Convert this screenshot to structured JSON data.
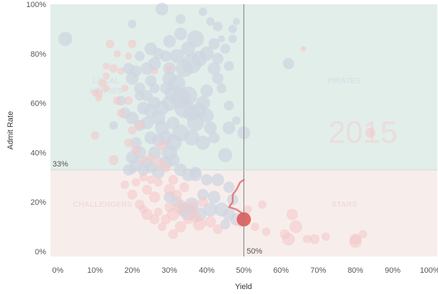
{
  "chart_data": {
    "type": "scatter",
    "title": "",
    "xlabel": "Yield",
    "ylabel": "Admit Rate",
    "xlim": [
      -2,
      102
    ],
    "ylim": [
      -2,
      100
    ],
    "xticks": [
      0,
      10,
      20,
      30,
      40,
      50,
      60,
      70,
      80,
      90,
      100
    ],
    "xtick_labels": [
      "0%",
      "10%",
      "20%",
      "30%",
      "40%",
      "50%",
      "60%",
      "70%",
      "80%",
      "90%",
      "100%"
    ],
    "yticks": [
      0,
      20,
      40,
      60,
      80,
      100
    ],
    "ytick_labels": [
      "0%",
      "20%",
      "40%",
      "60%",
      "80%",
      "100%"
    ],
    "grid": false,
    "threshold_yield": 50,
    "threshold_yield_label": "50%",
    "threshold_admit": 33,
    "threshold_admit_label": "33%",
    "year_watermark": "2015",
    "quadrants": [
      {
        "label": "LOCAL HEROES",
        "lines": [
          "LOCAL",
          "HEROES"
        ],
        "x": 13,
        "y": 68,
        "color": "#d9e1e6"
      },
      {
        "label": "PIRATES",
        "lines": [
          "PIRATES"
        ],
        "x": 77,
        "y": 68,
        "color": "#d9e1e6"
      },
      {
        "label": "CHALLENGERS",
        "lines": [
          "CHALLENGERS"
        ],
        "x": 12,
        "y": 18,
        "color": "#efdcdc"
      },
      {
        "label": "STARS",
        "lines": [
          "STARS"
        ],
        "x": 77,
        "y": 18,
        "color": "#efdcdc"
      }
    ],
    "colors": {
      "top_band": "#e2eeea",
      "bottom_band": "#f7eeec",
      "gray_point": "#cfd6e0",
      "red_point": "#f4c9c9",
      "highlight": "#e05a5a",
      "trail": "#e07070",
      "ref_line": "#8c8c8c"
    },
    "series": [
      {
        "color": "gray",
        "points": [
          [
            2,
            86,
            10
          ],
          [
            28,
            98,
            9
          ],
          [
            20,
            92,
            6
          ],
          [
            33,
            94,
            7
          ],
          [
            39,
            97,
            6
          ],
          [
            41,
            93,
            6
          ],
          [
            43,
            91,
            7
          ],
          [
            44,
            86,
            5
          ],
          [
            47,
            90,
            6
          ],
          [
            48,
            93,
            5
          ],
          [
            42,
            84,
            8
          ],
          [
            45,
            82,
            7
          ],
          [
            47,
            86,
            6
          ],
          [
            43,
            78,
            8
          ],
          [
            46,
            75,
            7
          ],
          [
            30,
            85,
            9
          ],
          [
            33,
            88,
            9
          ],
          [
            35,
            82,
            10
          ],
          [
            37,
            86,
            12
          ],
          [
            38,
            78,
            11
          ],
          [
            40,
            80,
            10
          ],
          [
            36,
            76,
            14
          ],
          [
            34,
            74,
            12
          ],
          [
            32,
            79,
            10
          ],
          [
            30,
            74,
            9
          ],
          [
            29,
            79,
            8
          ],
          [
            27,
            80,
            8
          ],
          [
            25,
            82,
            9
          ],
          [
            26,
            76,
            9
          ],
          [
            24,
            74,
            9
          ],
          [
            22,
            79,
            7
          ],
          [
            21,
            73,
            8
          ],
          [
            19,
            74,
            8
          ],
          [
            20,
            70,
            9
          ],
          [
            22,
            66,
            8
          ],
          [
            24,
            63,
            8
          ],
          [
            23,
            58,
            9
          ],
          [
            25,
            57,
            10
          ],
          [
            26,
            60,
            9
          ],
          [
            27,
            54,
            10
          ],
          [
            28,
            58,
            10
          ],
          [
            30,
            60,
            11
          ],
          [
            31,
            64,
            12
          ],
          [
            32,
            68,
            12
          ],
          [
            33,
            62,
            14
          ],
          [
            34,
            58,
            14
          ],
          [
            35,
            63,
            13
          ],
          [
            36,
            56,
            12
          ],
          [
            37,
            52,
            12
          ],
          [
            38,
            57,
            11
          ],
          [
            39,
            60,
            10
          ],
          [
            40,
            55,
            10
          ],
          [
            41,
            50,
            9
          ],
          [
            42,
            46,
            8
          ],
          [
            39,
            44,
            10
          ],
          [
            36,
            46,
            11
          ],
          [
            33,
            48,
            12
          ],
          [
            31,
            44,
            12
          ],
          [
            30,
            40,
            11
          ],
          [
            29,
            46,
            10
          ],
          [
            28,
            50,
            10
          ],
          [
            27,
            45,
            9
          ],
          [
            25,
            46,
            9
          ],
          [
            26,
            40,
            9
          ],
          [
            24,
            36,
            8
          ],
          [
            22,
            40,
            9
          ],
          [
            21,
            44,
            8
          ],
          [
            20,
            38,
            9
          ],
          [
            19,
            33,
            8
          ],
          [
            21,
            35,
            9
          ],
          [
            23,
            33,
            8
          ],
          [
            25,
            34,
            8
          ],
          [
            27,
            32,
            9
          ],
          [
            29,
            36,
            9
          ],
          [
            31,
            37,
            9
          ],
          [
            33,
            33,
            9
          ],
          [
            35,
            31,
            9
          ],
          [
            37,
            32,
            8
          ],
          [
            46,
            59,
            7
          ],
          [
            48,
            53,
            6
          ],
          [
            50,
            48,
            9
          ],
          [
            46,
            50,
            9
          ],
          [
            45,
            39,
            10
          ],
          [
            40,
            65,
            9
          ],
          [
            43,
            70,
            8
          ],
          [
            44,
            66,
            7
          ],
          [
            42,
            74,
            9
          ],
          [
            30,
            70,
            10
          ],
          [
            31,
            52,
            9
          ],
          [
            26,
            66,
            7
          ],
          [
            24,
            52,
            9
          ],
          [
            22,
            51,
            8
          ],
          [
            20,
            54,
            9
          ],
          [
            18,
            56,
            8
          ],
          [
            17,
            61,
            7
          ],
          [
            15,
            51,
            6
          ],
          [
            20,
            33,
            6
          ],
          [
            22,
            63,
            7
          ],
          [
            25,
            69,
            8
          ],
          [
            29,
            66,
            8
          ],
          [
            62,
            76,
            8
          ],
          [
            40,
            29,
            8
          ],
          [
            37,
            31,
            9
          ],
          [
            43,
            29,
            9
          ],
          [
            46,
            26,
            8
          ],
          [
            47,
            21,
            8
          ],
          [
            34,
            17,
            10
          ],
          [
            35,
            16,
            12
          ],
          [
            36,
            19,
            10
          ],
          [
            38,
            15,
            10
          ],
          [
            41,
            17,
            10
          ],
          [
            44,
            17,
            10
          ],
          [
            46,
            15,
            9
          ],
          [
            48,
            13,
            9
          ],
          [
            42,
            22,
            9
          ],
          [
            39,
            23,
            8
          ],
          [
            32,
            20,
            8
          ],
          [
            30,
            22,
            8
          ],
          [
            45,
            11,
            7
          ]
        ]
      },
      {
        "color": "red",
        "points": [
          [
            14,
            84,
            6
          ],
          [
            16,
            80,
            5
          ],
          [
            19,
            79,
            5
          ],
          [
            20,
            84,
            6
          ],
          [
            15,
            74,
            6
          ],
          [
            13,
            71,
            5
          ],
          [
            12,
            68,
            6
          ],
          [
            11,
            64,
            6
          ],
          [
            13,
            66,
            5
          ],
          [
            16,
            61,
            6
          ],
          [
            18,
            66,
            5
          ],
          [
            19,
            61,
            6
          ],
          [
            17,
            56,
            6
          ],
          [
            20,
            49,
            6
          ],
          [
            22,
            51,
            6
          ],
          [
            19,
            44,
            6
          ],
          [
            21,
            41,
            7
          ],
          [
            23,
            37,
            6
          ],
          [
            15,
            37,
            7
          ],
          [
            10,
            47,
            6
          ],
          [
            13,
            75,
            5
          ],
          [
            17,
            73,
            5
          ],
          [
            26,
            73,
            5
          ],
          [
            30,
            74,
            5
          ],
          [
            28,
            43,
            7
          ],
          [
            25,
            38,
            6
          ],
          [
            27,
            36,
            8
          ],
          [
            29,
            34,
            7
          ],
          [
            31,
            29,
            7
          ],
          [
            30,
            25,
            8
          ],
          [
            32,
            23,
            7
          ],
          [
            34,
            26,
            7
          ],
          [
            33,
            18,
            10
          ],
          [
            31,
            15,
            9
          ],
          [
            36,
            18,
            8
          ],
          [
            39,
            20,
            7
          ],
          [
            41,
            12,
            8
          ],
          [
            43,
            9,
            7
          ],
          [
            38,
            11,
            9
          ],
          [
            37,
            14,
            8
          ],
          [
            35,
            13,
            7
          ],
          [
            33,
            10,
            8
          ],
          [
            31,
            7,
            7
          ],
          [
            28,
            10,
            6
          ],
          [
            26,
            13,
            7
          ],
          [
            24,
            15,
            8
          ],
          [
            22,
            19,
            7
          ],
          [
            20,
            23,
            7
          ],
          [
            18,
            27,
            6
          ],
          [
            24,
            25,
            7
          ],
          [
            27,
            28,
            6
          ],
          [
            26,
            22,
            8
          ],
          [
            21,
            28,
            6
          ],
          [
            23,
            30,
            6
          ],
          [
            25,
            29,
            6
          ],
          [
            23,
            17,
            6
          ],
          [
            27,
            16,
            6
          ],
          [
            30,
            18,
            7
          ],
          [
            29,
            13,
            7
          ],
          [
            49,
            12,
            7
          ],
          [
            51,
            17,
            6
          ],
          [
            53,
            10,
            6
          ],
          [
            55,
            19,
            6
          ],
          [
            56,
            8,
            6
          ],
          [
            61,
            7,
            7
          ],
          [
            62,
            5,
            9
          ],
          [
            64,
            10,
            9
          ],
          [
            63,
            15,
            8
          ],
          [
            67,
            5,
            6
          ],
          [
            69,
            5,
            7
          ],
          [
            72,
            6,
            6
          ],
          [
            80,
            4,
            9
          ],
          [
            80,
            5,
            8
          ],
          [
            82,
            7,
            6
          ],
          [
            84,
            48,
            7
          ],
          [
            66,
            82,
            4
          ],
          [
            10,
            64,
            5
          ],
          [
            11,
            62,
            5
          ]
        ]
      }
    ],
    "highlight": {
      "x": 50,
      "y": 13,
      "r": 10
    },
    "trail": [
      [
        50,
        29
      ],
      [
        49,
        28
      ],
      [
        48,
        25
      ],
      [
        47,
        23
      ],
      [
        47,
        20
      ],
      [
        46,
        18
      ],
      [
        48,
        17
      ],
      [
        49,
        16
      ],
      [
        50,
        15
      ],
      [
        50,
        13
      ]
    ]
  }
}
